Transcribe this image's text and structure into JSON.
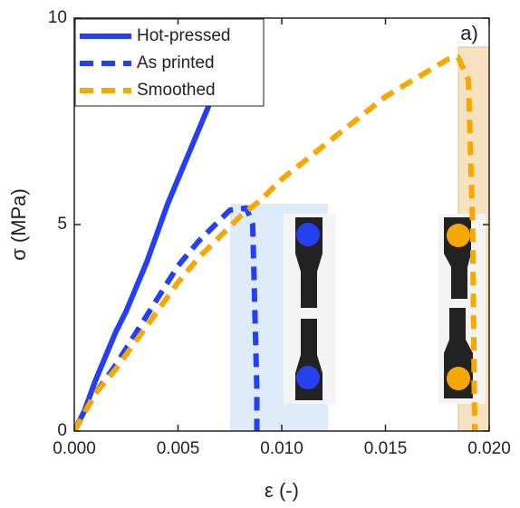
{
  "chart_data": {
    "type": "line",
    "xlabel": "ε (-)",
    "ylabel": "σ (MPa)",
    "annotation": "a)",
    "xlim": [
      0,
      0.02
    ],
    "ylim": [
      0,
      10
    ],
    "xticks": [
      {
        "value": 0,
        "label": "0.000"
      },
      {
        "value": 0.005,
        "label": "0.005"
      },
      {
        "value": 0.01,
        "label": "0.010"
      },
      {
        "value": 0.015,
        "label": "0.015"
      },
      {
        "value": 0.02,
        "label": "0.020"
      }
    ],
    "yticks": [
      0,
      5,
      10
    ],
    "legend": "upper left",
    "series": [
      {
        "name": "Hot-pressed",
        "color": "#2440f0",
        "dashed": false,
        "x": [
          0,
          0.0005,
          0.001,
          0.0015,
          0.002,
          0.0025,
          0.003,
          0.0035,
          0.004,
          0.0045,
          0.005,
          0.0055,
          0.006,
          0.0065,
          0.007,
          0.0075,
          0.008,
          0.0083
        ],
        "values": [
          0,
          0.5,
          1.2,
          1.8,
          2.4,
          2.9,
          3.5,
          4.1,
          4.8,
          5.5,
          6.1,
          6.7,
          7.3,
          7.9,
          8.5,
          9.0,
          9.5,
          10
        ]
      },
      {
        "name": "As printed",
        "color": "#2440f0",
        "dashed": true,
        "x": [
          0,
          0.001,
          0.002,
          0.003,
          0.004,
          0.005,
          0.006,
          0.007,
          0.0075,
          0.0083,
          0.0086,
          0.0087,
          0.0088,
          0.0088
        ],
        "values": [
          0,
          0.9,
          1.6,
          2.4,
          3.2,
          4.0,
          4.6,
          5.1,
          5.35,
          5.4,
          5.0,
          3.0,
          1.0,
          0
        ]
      },
      {
        "name": "Smoothed",
        "color": "#f7a800",
        "dashed": true,
        "x": [
          0,
          0.001,
          0.002,
          0.003,
          0.004,
          0.005,
          0.006,
          0.007,
          0.008,
          0.009,
          0.01,
          0.011,
          0.012,
          0.013,
          0.014,
          0.015,
          0.016,
          0.017,
          0.018,
          0.0185,
          0.019,
          0.0192,
          0.0193
        ],
        "values": [
          0,
          0.9,
          1.5,
          2.2,
          2.9,
          3.6,
          4.2,
          4.7,
          5.2,
          5.6,
          6.1,
          6.5,
          6.9,
          7.3,
          7.7,
          8.1,
          8.4,
          8.7,
          9.0,
          9.05,
          8.5,
          5,
          0
        ]
      }
    ]
  }
}
